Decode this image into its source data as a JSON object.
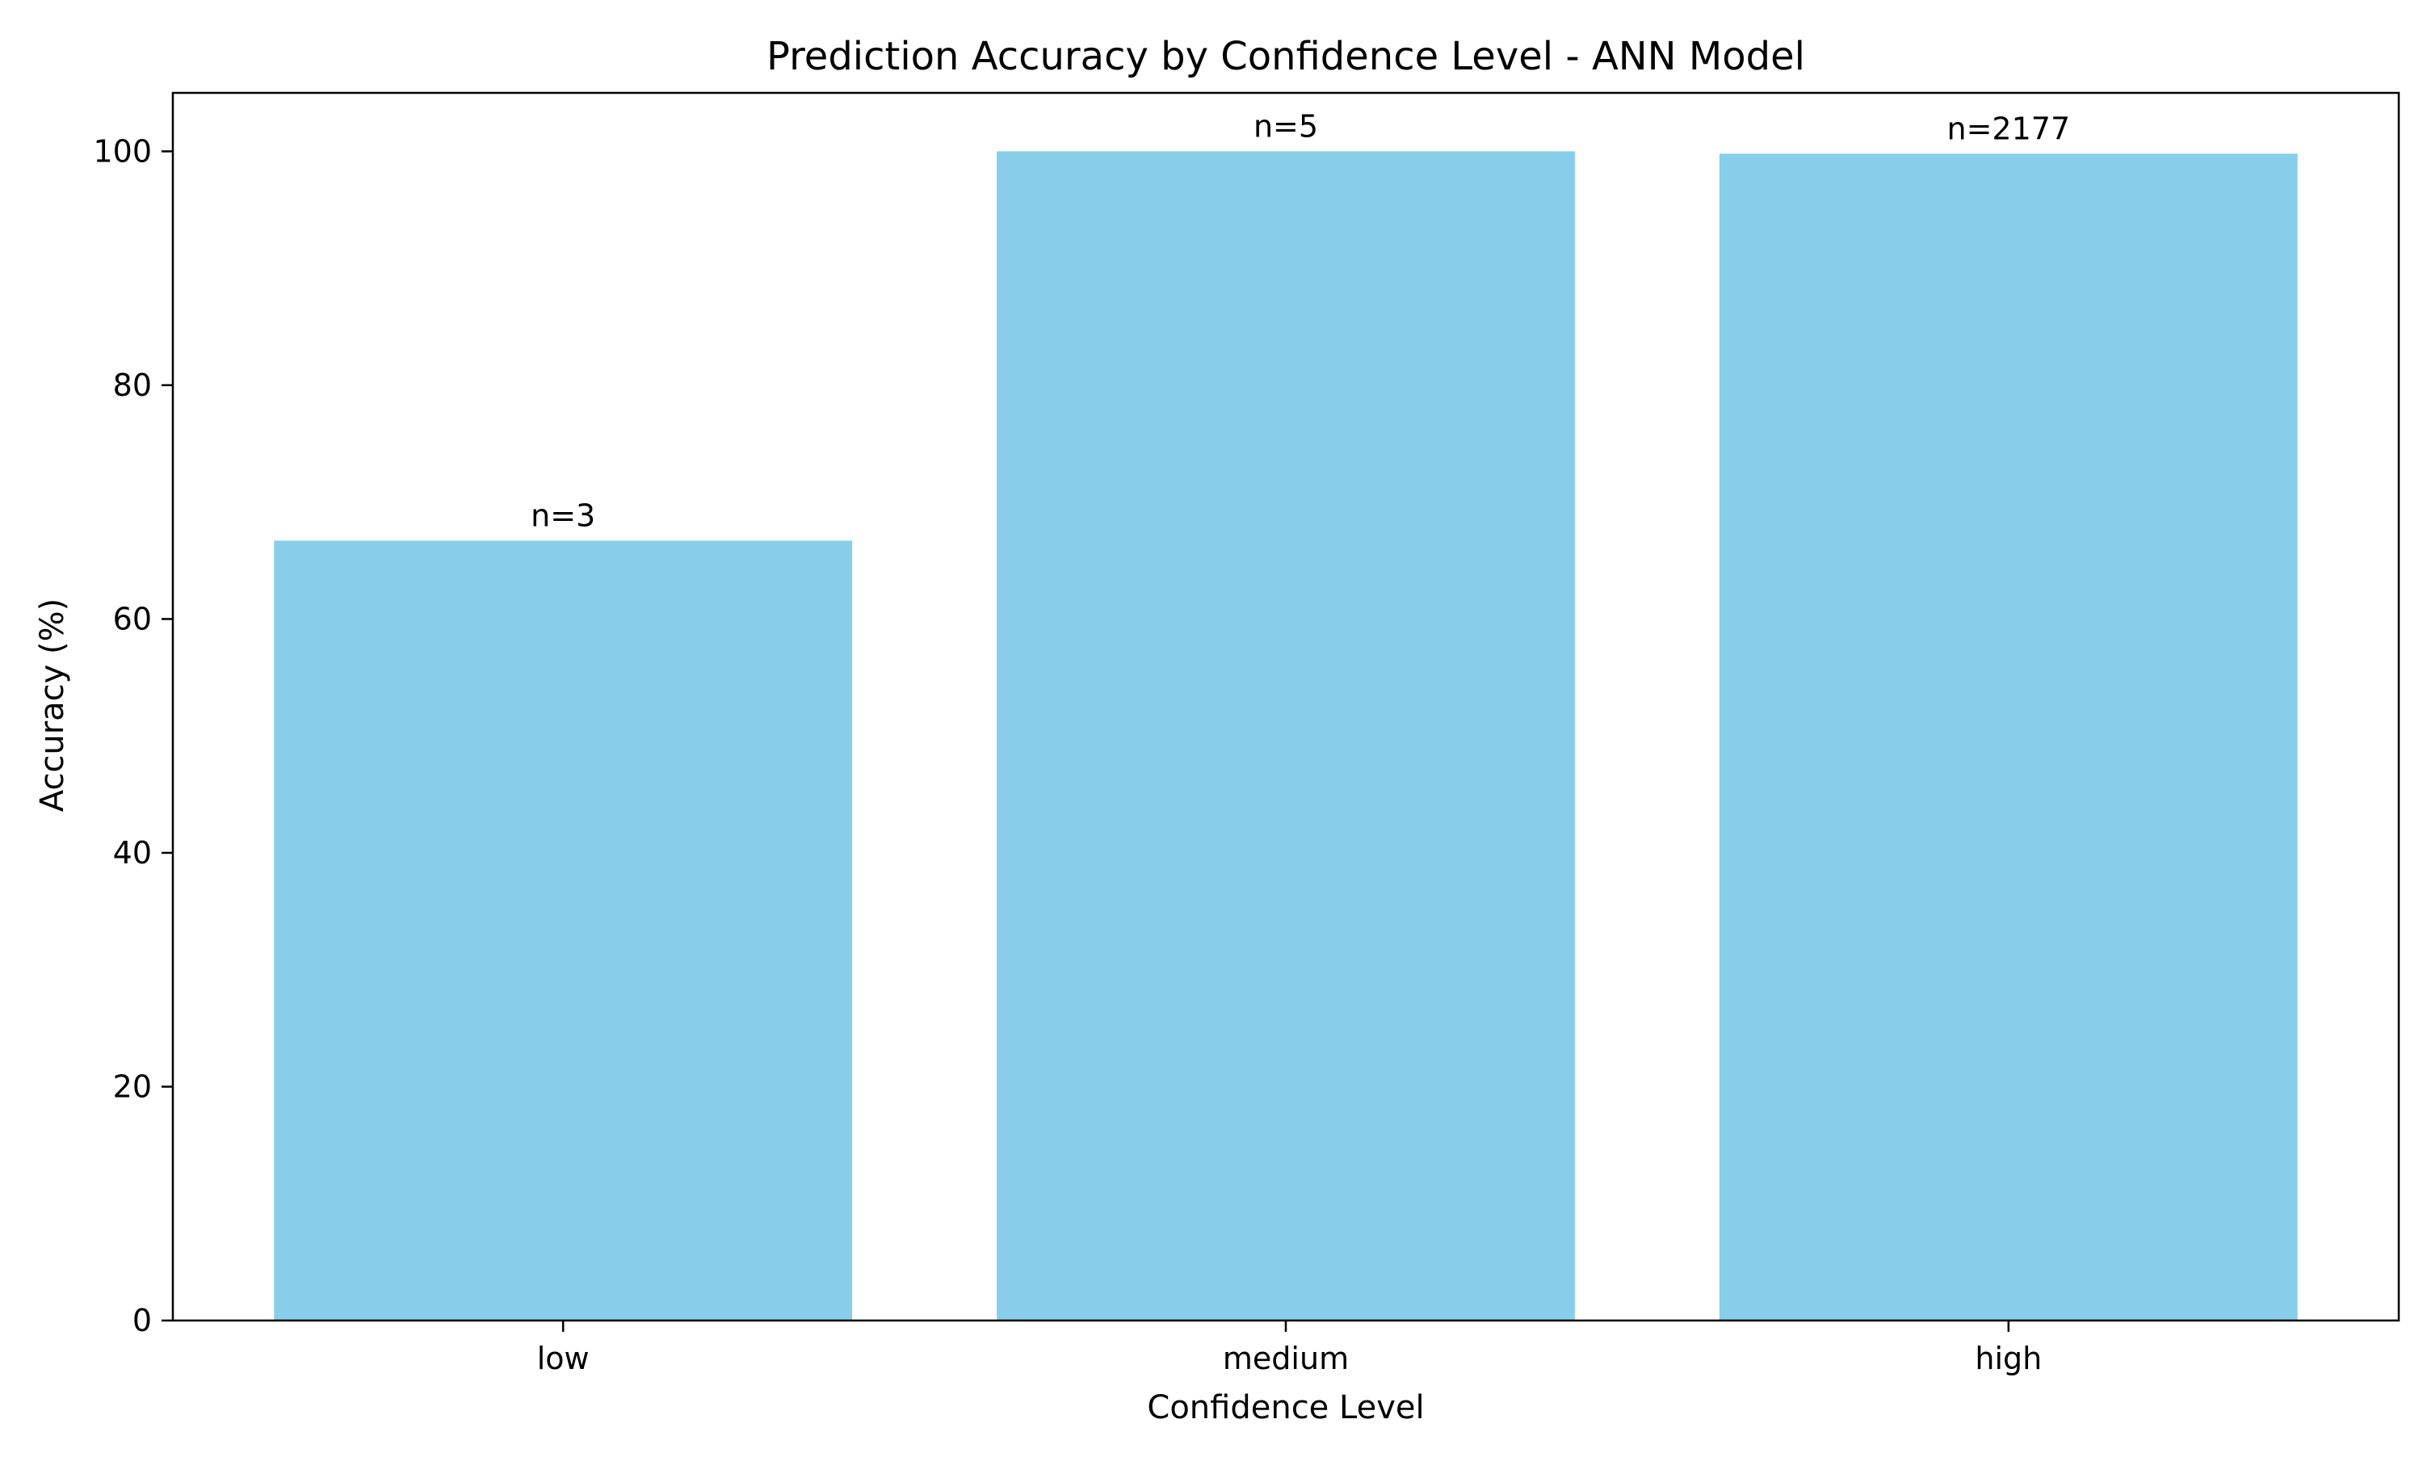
{
  "chart_data": {
    "type": "bar",
    "title": "Prediction Accuracy by Confidence Level - ANN Model",
    "xlabel": "Confidence Level",
    "ylabel": "Accuracy (%)",
    "categories": [
      "low",
      "medium",
      "high"
    ],
    "values": [
      66.7,
      100.0,
      99.8
    ],
    "data_labels": [
      "n=3",
      "n=5",
      "n=2177"
    ],
    "ylim": [
      0,
      105
    ],
    "yticks": [
      0,
      20,
      40,
      60,
      80,
      100
    ],
    "grid": false,
    "legend": "none",
    "bar_color": "#87CEEB"
  }
}
